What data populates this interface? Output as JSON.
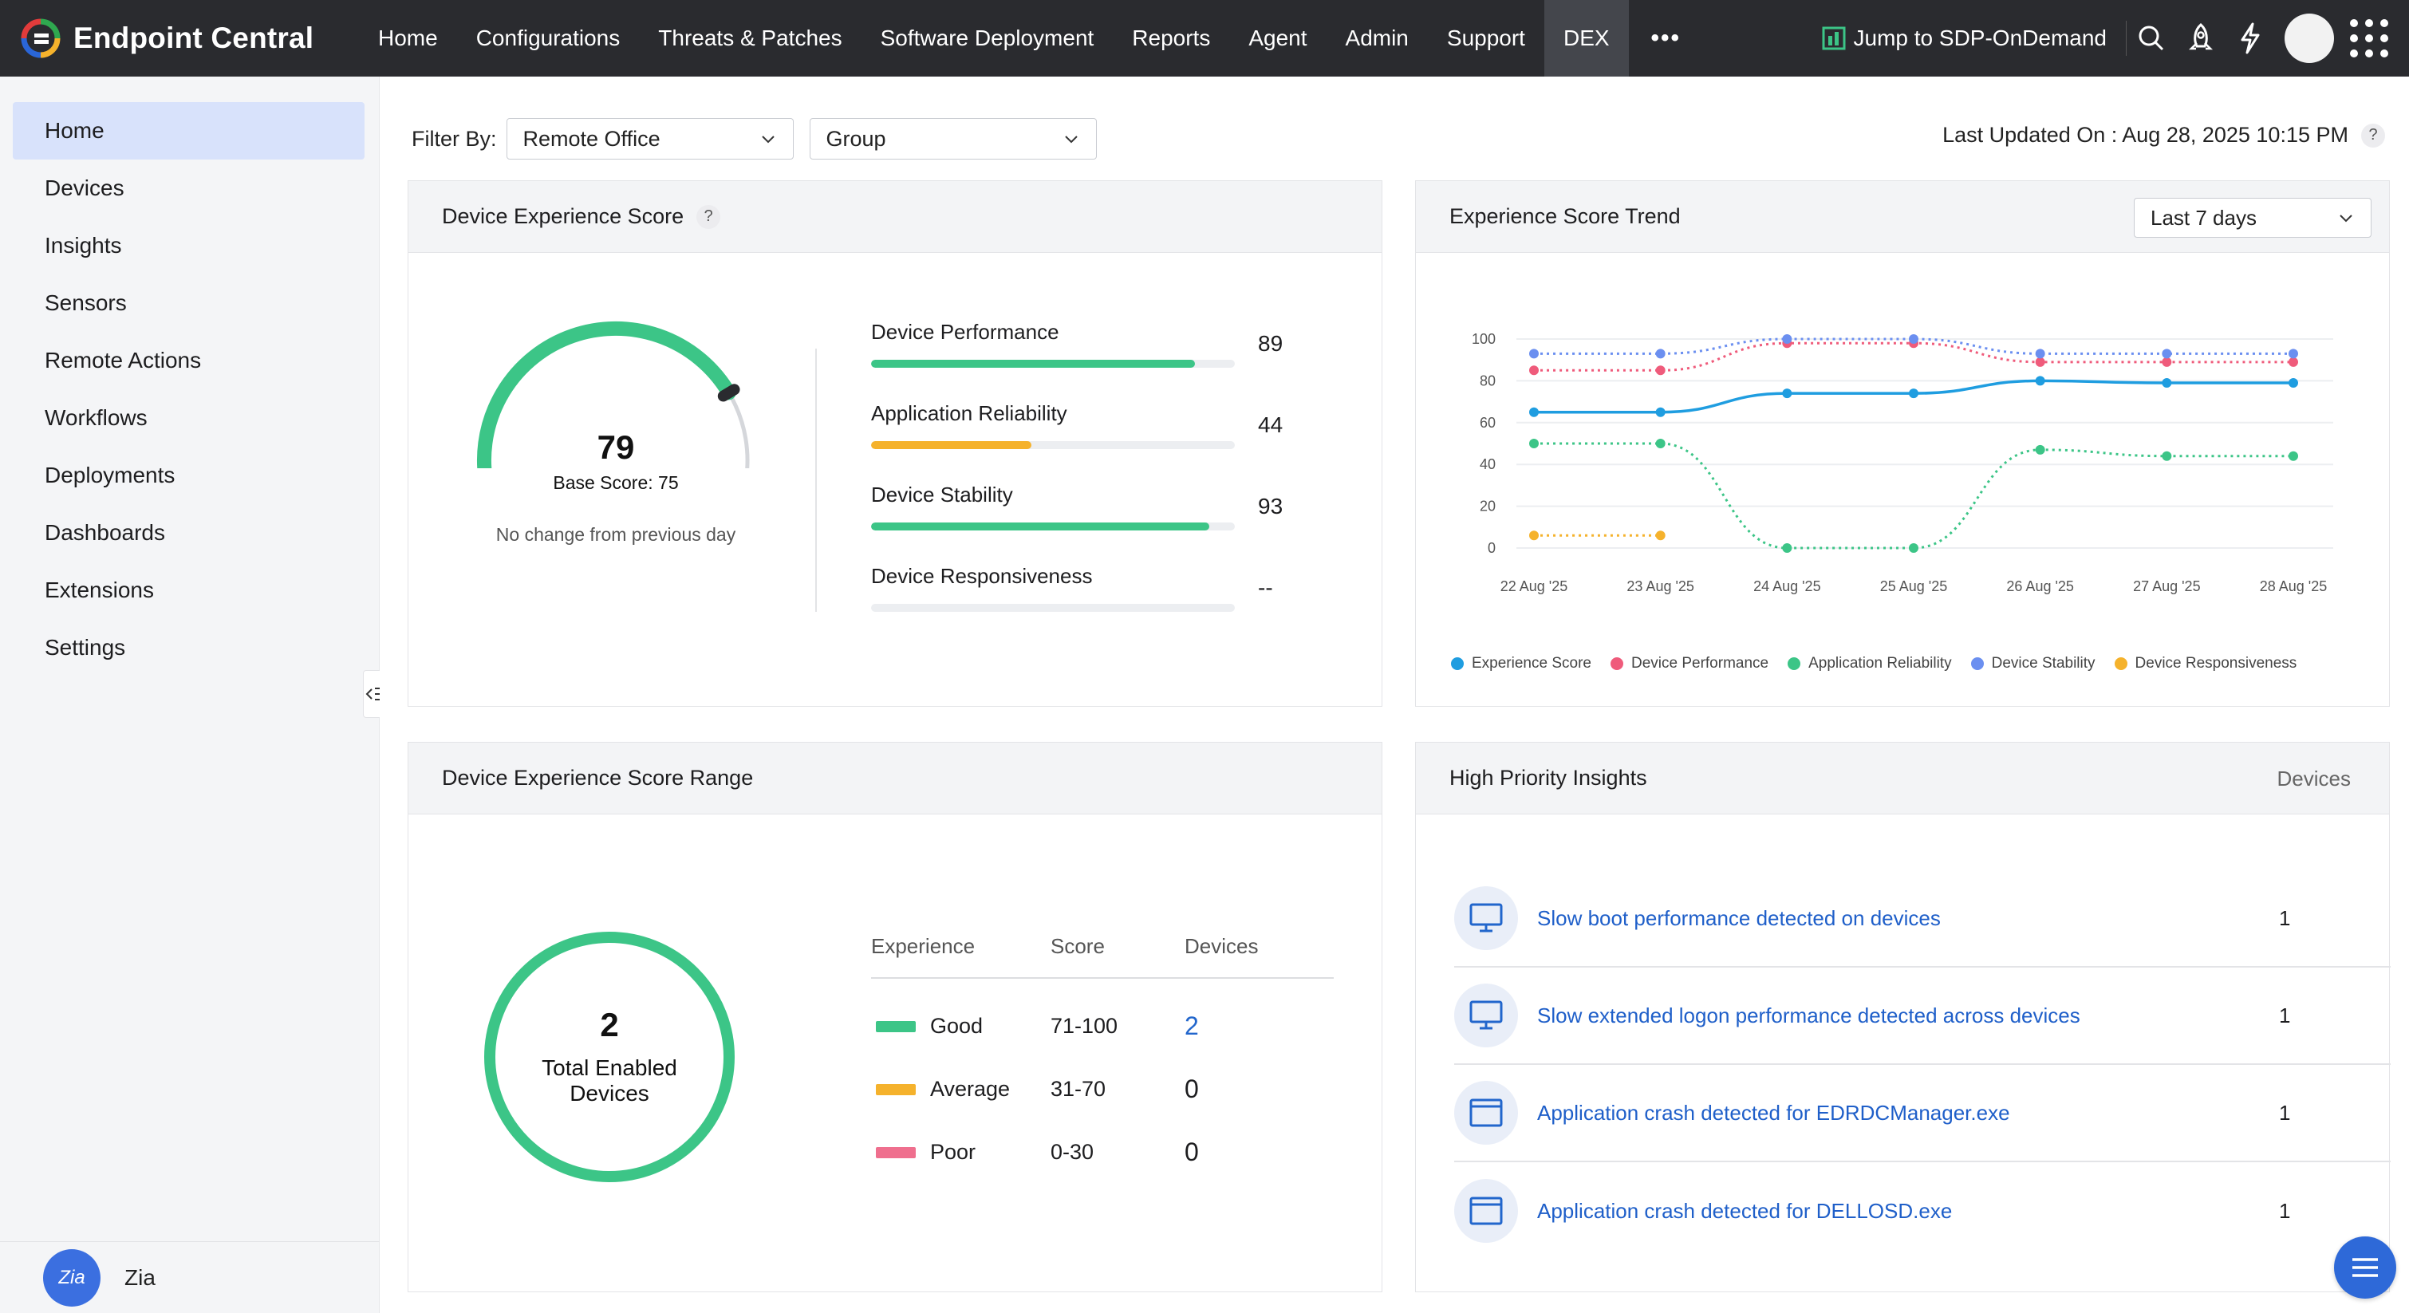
{
  "app": {
    "brand": "Endpoint Central",
    "colors": {
      "brand_blue": "#2a66d8",
      "topbar": "#2a2b2f",
      "active_nav": "#44464c",
      "link": "#1f5fc9"
    }
  },
  "nav": {
    "items": [
      "Home",
      "Configurations",
      "Threats & Patches",
      "Software Deployment",
      "Reports",
      "Agent",
      "Admin",
      "Support",
      "DEX"
    ],
    "active": "DEX",
    "more_label": "•••",
    "jump_label": "Jump to SDP-OnDemand"
  },
  "sidebar": {
    "items": [
      {
        "label": "Home",
        "active": true
      },
      {
        "label": "Devices"
      },
      {
        "label": "Insights"
      },
      {
        "label": "Sensors"
      },
      {
        "label": "Remote Actions"
      },
      {
        "label": "Workflows"
      },
      {
        "label": "Deployments"
      },
      {
        "label": "Dashboards"
      },
      {
        "label": "Extensions"
      },
      {
        "label": "Settings"
      }
    ],
    "footer_label": "Zia",
    "footer_icon_text": "Zia"
  },
  "filters": {
    "label": "Filter By:",
    "remote_office": "Remote Office",
    "group": "Group",
    "last_updated": "Last Updated On : Aug 28, 2025 10:15 PM",
    "help": "?"
  },
  "score_card": {
    "title": "Device Experience Score",
    "help": "?",
    "score": 79,
    "max_score": 100,
    "score_text": "79",
    "base_score": "Base Score: 75",
    "note": "No change from previous day",
    "metrics": [
      {
        "label": "Device Performance",
        "value": "89",
        "fill_pct": 89,
        "color": "#3cc587"
      },
      {
        "label": "Application Reliability",
        "value": "44",
        "fill_pct": 44,
        "color": "#f5b22c"
      },
      {
        "label": "Device Stability",
        "value": "93",
        "fill_pct": 93,
        "color": "#3cc587"
      },
      {
        "label": "Device Responsiveness",
        "value": "--",
        "fill_pct": 0,
        "color": "#3cc587"
      }
    ]
  },
  "trend_card": {
    "title": "Experience Score Trend",
    "range": "Last 7 days"
  },
  "chart_data": {
    "type": "line",
    "title": "Experience Score Trend",
    "categories": [
      "22 Aug '25",
      "23 Aug '25",
      "24 Aug '25",
      "25 Aug '25",
      "26 Aug '25",
      "27 Aug '25",
      "28 Aug '25"
    ],
    "y_ticks": [
      "100",
      "80",
      "60",
      "40",
      "20",
      "0"
    ],
    "ylim": [
      0,
      100
    ],
    "series": [
      {
        "name": "Experience Score",
        "color": "#1f9de0",
        "dashed": false,
        "values": [
          65,
          65,
          74,
          74,
          80,
          79,
          79
        ]
      },
      {
        "name": "Device Performance",
        "color": "#ef5b7b",
        "dashed": true,
        "values": [
          85,
          85,
          98,
          98,
          89,
          89,
          89
        ]
      },
      {
        "name": "Application Reliability",
        "color": "#3cc587",
        "dashed": true,
        "values": [
          50,
          50,
          0,
          0,
          47,
          44,
          44
        ]
      },
      {
        "name": "Device Stability",
        "color": "#6b8ff0",
        "dashed": true,
        "values": [
          93,
          93,
          100,
          100,
          93,
          93,
          93
        ]
      },
      {
        "name": "Device Responsiveness",
        "color": "#f5b22c",
        "dashed": true,
        "values": [
          6,
          6,
          null,
          null,
          null,
          null,
          null
        ]
      }
    ]
  },
  "range_card": {
    "title": "Device Experience Score Range",
    "total": "2",
    "total_label": "Total Enabled Devices",
    "headers": {
      "experience": "Experience",
      "score": "Score",
      "devices": "Devices"
    },
    "rows": [
      {
        "label": "Good",
        "score": "71-100",
        "devices": "2",
        "color": "#3cc587",
        "link": true
      },
      {
        "label": "Average",
        "score": "31-70",
        "devices": "0",
        "color": "#f5b22c",
        "link": false
      },
      {
        "label": "Poor",
        "score": "0-30",
        "devices": "0",
        "color": "#ef6f8e",
        "link": false
      }
    ]
  },
  "insights_card": {
    "title": "High Priority Insights",
    "devices_header": "Devices",
    "items": [
      {
        "text": "Slow boot performance detected on devices",
        "count": "1",
        "icon": "monitor-icon"
      },
      {
        "text": "Slow extended logon performance detected across devices",
        "count": "1",
        "icon": "monitor-icon"
      },
      {
        "text": "Application crash detected for EDRDCManager.exe",
        "count": "1",
        "icon": "app-window-icon"
      },
      {
        "text": "Application crash detected for DELLOSD.exe",
        "count": "1",
        "icon": "app-window-icon"
      }
    ]
  }
}
